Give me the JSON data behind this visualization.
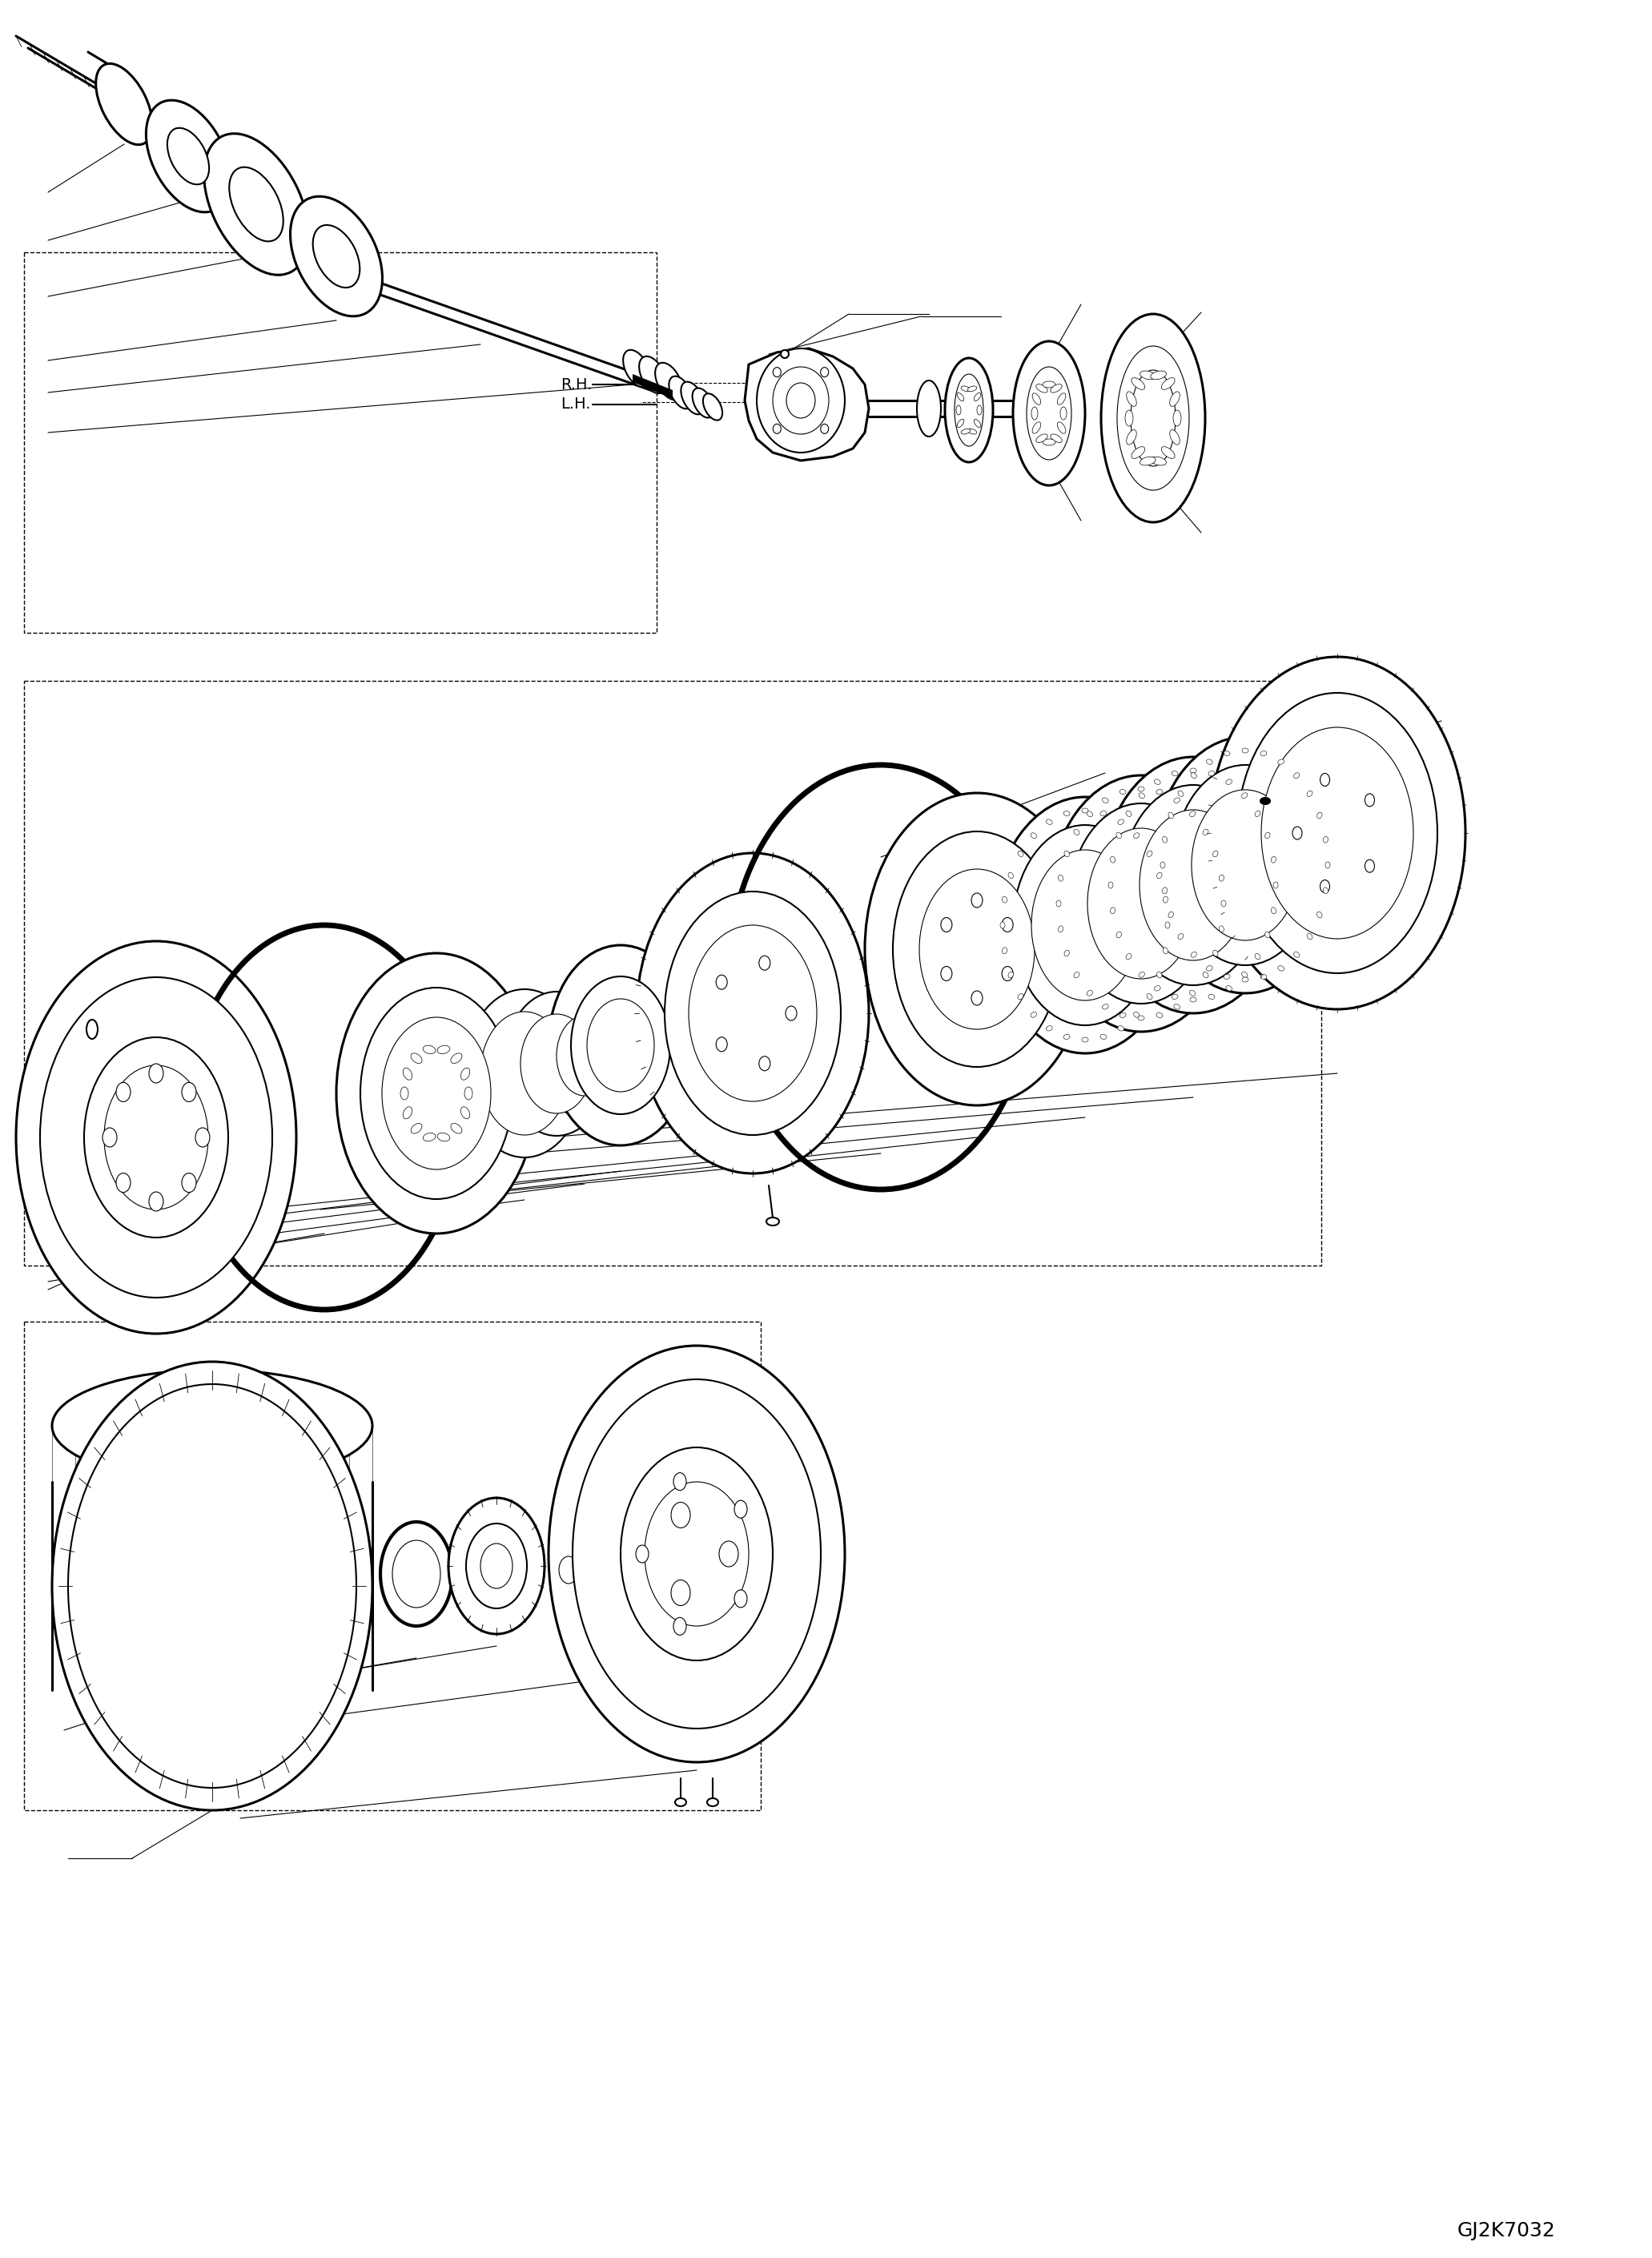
{
  "figure_width": 20.63,
  "figure_height": 28.19,
  "background_color": "#ffffff",
  "line_color": "#000000",
  "lw_thick": 2.2,
  "lw_med": 1.5,
  "lw_thin": 0.8,
  "lw_oring": 5.0,
  "label_rh": "R.H.",
  "label_lh": "L.H.",
  "code": "GJ2K7032",
  "code_fontsize": 18,
  "label_fontsize": 14,
  "dash_lw": 1.0
}
